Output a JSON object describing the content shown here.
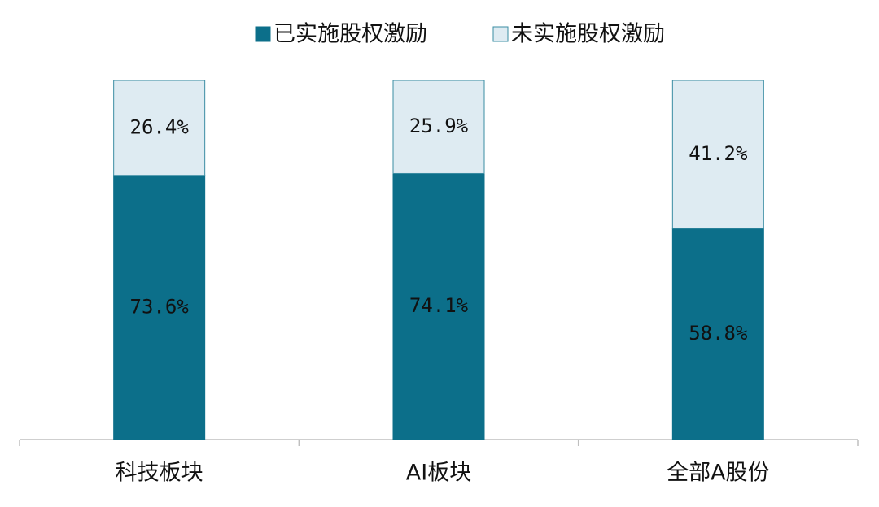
{
  "chart_data": {
    "type": "stacked_bar",
    "categories": [
      "科技板块",
      "AI板块",
      "全部A股份"
    ],
    "series": [
      {
        "name": "已实施股权激励",
        "color": "#0c6f8a",
        "values": [
          73.6,
          74.1,
          58.8
        ],
        "value_labels": [
          "73.6%",
          "74.1%",
          "58.8%"
        ]
      },
      {
        "name": "未实施股权激励",
        "color": "#deebf2",
        "values": [
          26.4,
          25.9,
          41.2
        ],
        "value_labels": [
          "26.4%",
          "25.9%",
          "41.2%"
        ]
      }
    ],
    "ylim": [
      0,
      100
    ],
    "legend": "top"
  }
}
